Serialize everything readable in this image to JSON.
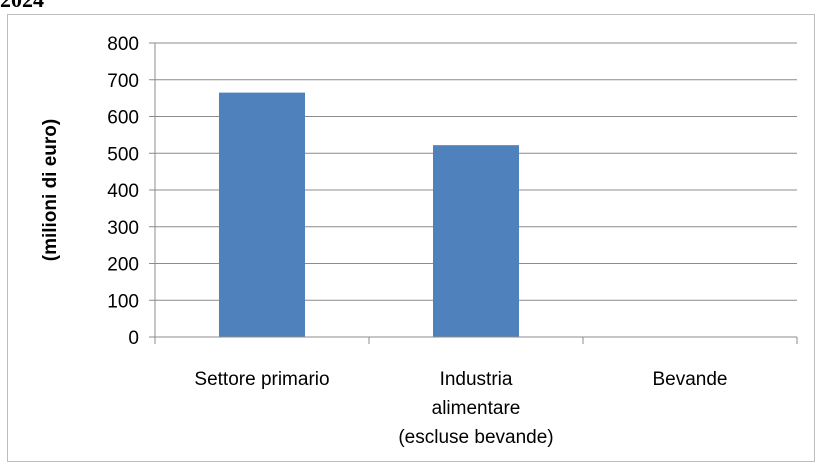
{
  "title": "2024",
  "chart_data": {
    "type": "bar",
    "title": "2024",
    "xlabel": "",
    "ylabel": "(milioni di euro)",
    "categories": [
      [
        "Settore primario"
      ],
      [
        "Industria",
        "alimentare",
        "(escluse bevande)"
      ],
      [
        "Bevande"
      ]
    ],
    "values": [
      665,
      522,
      0
    ],
    "ylim": [
      0,
      800
    ],
    "yticks": [
      0,
      100,
      200,
      300,
      400,
      500,
      600,
      700,
      800
    ],
    "grid": true,
    "legend": "none",
    "colors": {
      "bar": "#4f81bd",
      "grid": "#8c8c8c",
      "axis": "#8c8c8c",
      "frame": "#bdbdbd"
    }
  }
}
